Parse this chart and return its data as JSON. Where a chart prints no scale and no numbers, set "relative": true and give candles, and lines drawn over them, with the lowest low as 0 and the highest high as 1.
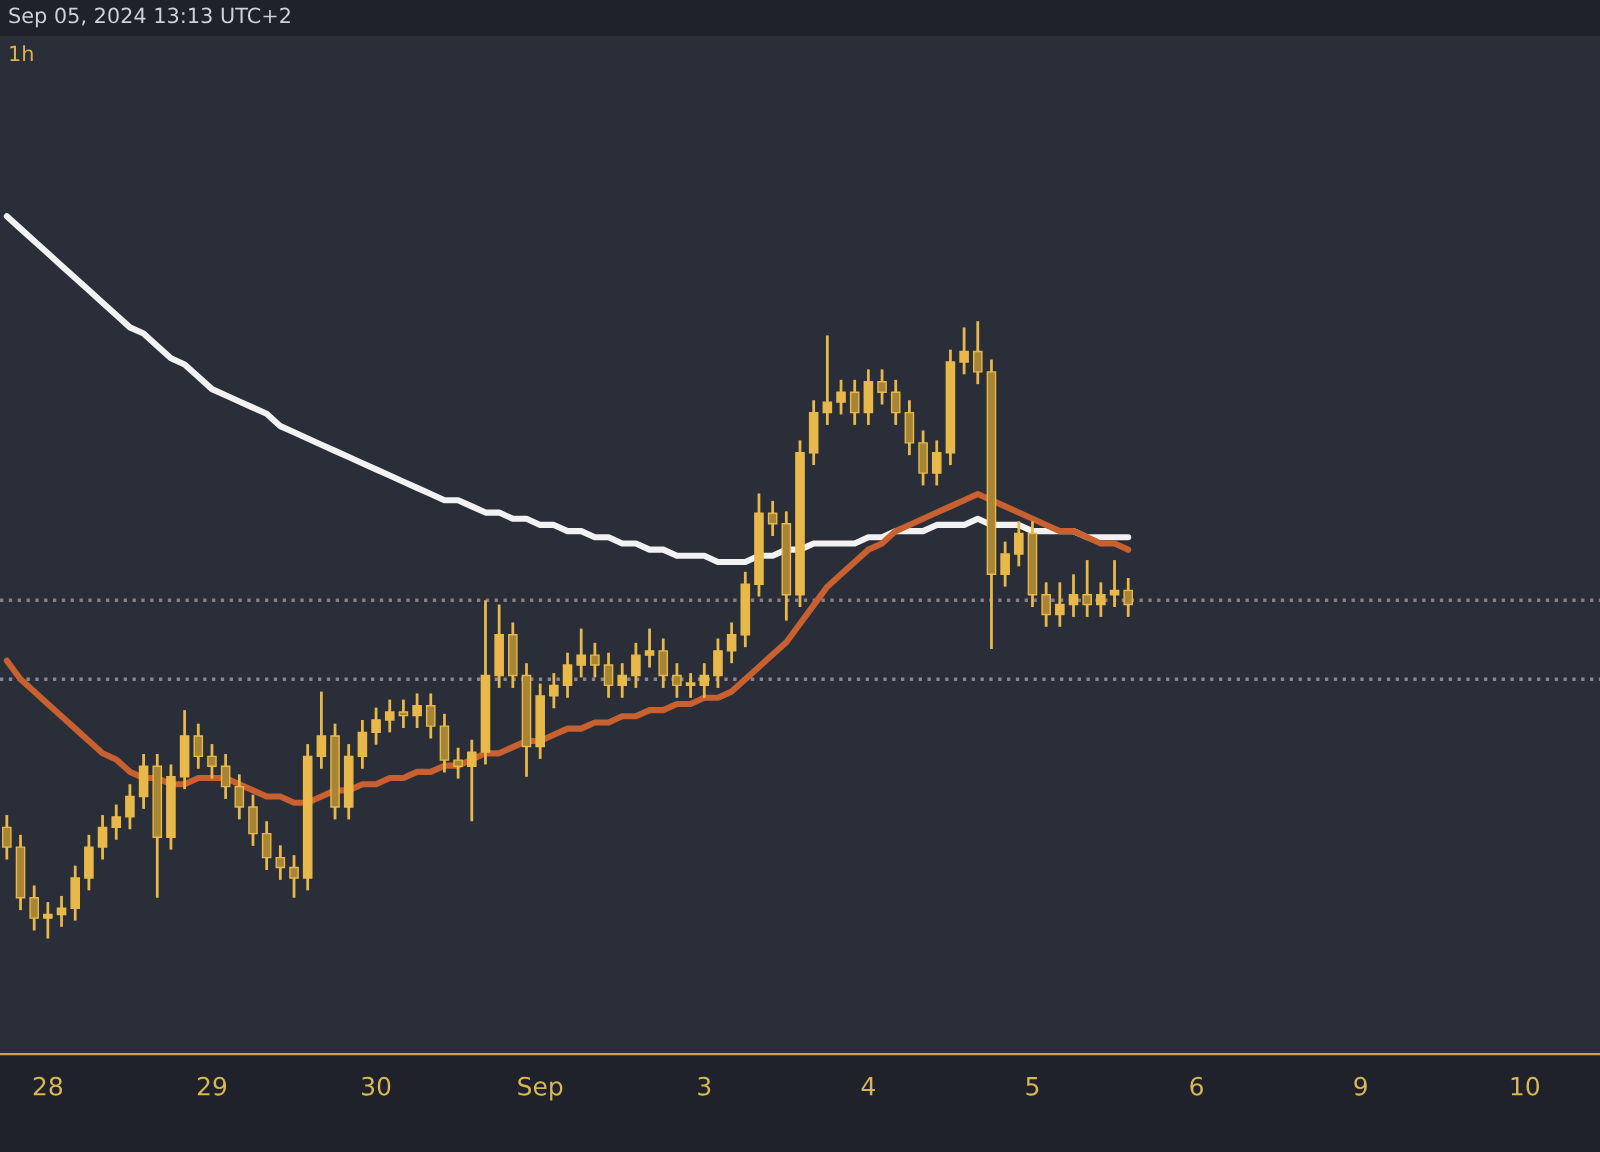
{
  "chart_data": {
    "type": "candlestick",
    "relative": true,
    "color": "#e8b94a",
    "annotations": [
      "Sep 05, 2024 13:13 UTC+2",
      "1h"
    ],
    "categories": [
      null,
      null,
      null,
      "28",
      null,
      null,
      null,
      null,
      null,
      null,
      null,
      null,
      null,
      null,
      null,
      "29",
      null,
      null,
      null,
      null,
      null,
      null,
      null,
      null,
      null,
      null,
      null,
      "30",
      null,
      null,
      null,
      null,
      null,
      null,
      null,
      null,
      null,
      null,
      null,
      "Sep",
      null,
      null,
      null,
      null,
      null,
      null,
      null,
      null,
      null,
      null,
      null,
      "3",
      null,
      null,
      null,
      null,
      null,
      null,
      null,
      null,
      null,
      null,
      null,
      "4",
      null,
      null,
      null,
      null,
      null,
      null,
      null,
      null,
      null,
      null,
      null,
      "5",
      null,
      null,
      null,
      null,
      null,
      null,
      null,
      null,
      null,
      null,
      null,
      "6",
      null,
      null,
      null,
      null,
      null,
      null,
      null,
      null,
      null,
      null,
      null,
      "9",
      null,
      null,
      null,
      null,
      null,
      null,
      null,
      null,
      null,
      null,
      null,
      "10",
      null,
      null,
      null,
      null,
      null
    ],
    "ohlc": [
      [
        0.18,
        0.2,
        0.128,
        0.148
      ],
      [
        0.148,
        0.168,
        0.046,
        0.066
      ],
      [
        0.066,
        0.086,
        0.013,
        0.033
      ],
      [
        0.033,
        0.059,
        0,
        0.039
      ],
      [
        0.039,
        0.069,
        0.019,
        0.049
      ],
      [
        0.049,
        0.118,
        0.029,
        0.098
      ],
      [
        0.098,
        0.168,
        0.078,
        0.148
      ],
      [
        0.148,
        0.2,
        0.128,
        0.18
      ],
      [
        0.18,
        0.217,
        0.16,
        0.197
      ],
      [
        0.197,
        0.25,
        0.177,
        0.23
      ],
      [
        0.23,
        0.299,
        0.21,
        0.279
      ],
      [
        0.279,
        0.299,
        0.066,
        0.164
      ],
      [
        0.164,
        0.282,
        0.144,
        0.262
      ],
      [
        0.262,
        0.37,
        0.242,
        0.328
      ],
      [
        0.328,
        0.348,
        0.275,
        0.295
      ],
      [
        0.295,
        0.315,
        0.259,
        0.279
      ],
      [
        0.279,
        0.299,
        0.226,
        0.246
      ],
      [
        0.246,
        0.266,
        0.193,
        0.213
      ],
      [
        0.213,
        0.233,
        0.15,
        0.17
      ],
      [
        0.17,
        0.19,
        0.111,
        0.131
      ],
      [
        0.131,
        0.151,
        0.095,
        0.115
      ],
      [
        0.115,
        0.135,
        0.066,
        0.098
      ],
      [
        0.098,
        0.315,
        0.078,
        0.295
      ],
      [
        0.295,
        0.4,
        0.275,
        0.328
      ],
      [
        0.328,
        0.348,
        0.193,
        0.213
      ],
      [
        0.213,
        0.315,
        0.193,
        0.295
      ],
      [
        0.295,
        0.354,
        0.275,
        0.334
      ],
      [
        0.334,
        0.374,
        0.314,
        0.354
      ],
      [
        0.354,
        0.387,
        0.334,
        0.367
      ],
      [
        0.367,
        0.387,
        0.341,
        0.361
      ],
      [
        0.361,
        0.397,
        0.341,
        0.377
      ],
      [
        0.377,
        0.397,
        0.324,
        0.344
      ],
      [
        0.344,
        0.364,
        0.269,
        0.289
      ],
      [
        0.289,
        0.309,
        0.259,
        0.279
      ],
      [
        0.279,
        0.322,
        0.19,
        0.302
      ],
      [
        0.302,
        0.548,
        0.282,
        0.426
      ],
      [
        0.426,
        0.541,
        0.406,
        0.492
      ],
      [
        0.492,
        0.512,
        0.406,
        0.426
      ],
      [
        0.426,
        0.446,
        0.262,
        0.311
      ],
      [
        0.311,
        0.413,
        0.291,
        0.393
      ],
      [
        0.393,
        0.43,
        0.373,
        0.41
      ],
      [
        0.41,
        0.463,
        0.39,
        0.443
      ],
      [
        0.443,
        0.502,
        0.423,
        0.459
      ],
      [
        0.459,
        0.479,
        0.423,
        0.443
      ],
      [
        0.443,
        0.463,
        0.39,
        0.41
      ],
      [
        0.41,
        0.446,
        0.39,
        0.426
      ],
      [
        0.426,
        0.479,
        0.406,
        0.459
      ],
      [
        0.459,
        0.502,
        0.439,
        0.466
      ],
      [
        0.466,
        0.486,
        0.406,
        0.426
      ],
      [
        0.426,
        0.446,
        0.39,
        0.41
      ],
      [
        0.41,
        0.43,
        0.39,
        0.41
      ],
      [
        0.41,
        0.446,
        0.39,
        0.426
      ],
      [
        0.426,
        0.486,
        0.406,
        0.466
      ],
      [
        0.466,
        0.512,
        0.446,
        0.492
      ],
      [
        0.492,
        0.594,
        0.472,
        0.574
      ],
      [
        0.574,
        0.721,
        0.554,
        0.689
      ],
      [
        0.689,
        0.709,
        0.652,
        0.672
      ],
      [
        0.672,
        0.692,
        0.515,
        0.557
      ],
      [
        0.557,
        0.807,
        0.537,
        0.787
      ],
      [
        0.787,
        0.872,
        0.767,
        0.852
      ],
      [
        0.852,
        0.977,
        0.832,
        0.869
      ],
      [
        0.869,
        0.905,
        0.849,
        0.885
      ],
      [
        0.885,
        0.905,
        0.832,
        0.852
      ],
      [
        0.852,
        0.922,
        0.832,
        0.902
      ],
      [
        0.902,
        0.922,
        0.865,
        0.885
      ],
      [
        0.885,
        0.905,
        0.832,
        0.852
      ],
      [
        0.852,
        0.872,
        0.783,
        0.803
      ],
      [
        0.803,
        0.823,
        0.734,
        0.754
      ],
      [
        0.754,
        0.807,
        0.734,
        0.787
      ],
      [
        0.787,
        0.954,
        0.767,
        0.934
      ],
      [
        0.934,
        0.99,
        0.914,
        0.951
      ],
      [
        0.951,
        1.0,
        0.898,
        0.918
      ],
      [
        0.918,
        0.938,
        0.469,
        0.59
      ],
      [
        0.59,
        0.643,
        0.57,
        0.623
      ],
      [
        0.623,
        0.676,
        0.603,
        0.656
      ],
      [
        0.656,
        0.676,
        0.537,
        0.557
      ],
      [
        0.557,
        0.577,
        0.505,
        0.525
      ],
      [
        0.525,
        0.577,
        0.505,
        0.541
      ],
      [
        0.541,
        0.59,
        0.521,
        0.557
      ],
      [
        0.557,
        0.613,
        0.521,
        0.541
      ],
      [
        0.541,
        0.577,
        0.521,
        0.557
      ],
      [
        0.557,
        0.613,
        0.537,
        0.564
      ],
      [
        0.564,
        0.584,
        0.521,
        0.541
      ],
      null,
      null,
      null,
      null,
      null,
      null,
      null,
      null,
      null,
      null,
      null,
      null,
      null,
      null,
      null,
      null,
      null,
      null,
      null,
      null,
      null,
      null,
      null,
      null,
      null,
      null,
      null,
      null,
      null,
      null,
      null,
      null,
      null,
      null
    ],
    "series": [
      {
        "type": "line",
        "color": "#f2f2f2",
        "values": [
          1.17,
          1.15,
          1.13,
          1.11,
          1.09,
          1.07,
          1.05,
          1.03,
          1.01,
          0.99,
          0.98,
          0.96,
          0.94,
          0.93,
          0.91,
          0.89,
          0.88,
          0.87,
          0.86,
          0.85,
          0.83,
          0.82,
          0.81,
          0.8,
          0.79,
          0.78,
          0.77,
          0.76,
          0.75,
          0.74,
          0.73,
          0.72,
          0.71,
          0.71,
          0.7,
          0.69,
          0.69,
          0.68,
          0.68,
          0.67,
          0.67,
          0.66,
          0.66,
          0.65,
          0.65,
          0.64,
          0.64,
          0.63,
          0.63,
          0.62,
          0.62,
          0.62,
          0.61,
          0.61,
          0.61,
          0.62,
          0.62,
          0.63,
          0.63,
          0.64,
          0.64,
          0.64,
          0.64,
          0.65,
          0.65,
          0.66,
          0.66,
          0.66,
          0.67,
          0.67,
          0.67,
          0.68,
          0.67,
          0.67,
          0.67,
          0.66,
          0.66,
          0.66,
          0.66,
          0.65,
          0.65,
          0.65,
          0.65,
          null,
          null,
          null,
          null,
          null,
          null,
          null,
          null,
          null,
          null,
          null,
          null,
          null,
          null,
          null,
          null,
          null,
          null,
          null,
          null,
          null,
          null,
          null,
          null,
          null,
          null,
          null,
          null,
          null,
          null,
          null,
          null,
          null,
          null
        ]
      },
      {
        "type": "line",
        "color": "#c8602f",
        "values": [
          0.45,
          0.42,
          0.4,
          0.38,
          0.36,
          0.34,
          0.32,
          0.3,
          0.29,
          0.27,
          0.26,
          0.26,
          0.25,
          0.25,
          0.26,
          0.26,
          0.26,
          0.25,
          0.24,
          0.23,
          0.23,
          0.22,
          0.22,
          0.23,
          0.24,
          0.24,
          0.25,
          0.25,
          0.26,
          0.26,
          0.27,
          0.27,
          0.28,
          0.28,
          0.29,
          0.3,
          0.3,
          0.31,
          0.32,
          0.32,
          0.33,
          0.34,
          0.34,
          0.35,
          0.35,
          0.36,
          0.36,
          0.37,
          0.37,
          0.38,
          0.38,
          0.39,
          0.39,
          0.4,
          0.42,
          0.44,
          0.46,
          0.48,
          0.51,
          0.54,
          0.57,
          0.59,
          0.61,
          0.63,
          0.64,
          0.66,
          0.67,
          0.68,
          0.69,
          0.7,
          0.71,
          0.72,
          0.71,
          0.7,
          0.69,
          0.68,
          0.67,
          0.66,
          0.66,
          0.65,
          0.64,
          0.64,
          0.63,
          null,
          null,
          null,
          null,
          null,
          null,
          null,
          null,
          null,
          null,
          null,
          null,
          null,
          null,
          null,
          null,
          null,
          null,
          null,
          null,
          null,
          null,
          null,
          null,
          null,
          null,
          null,
          null,
          null,
          null,
          null,
          null,
          null,
          null
        ]
      }
    ],
    "ref_lines": [
      {
        "axis": "y",
        "value": 0.548,
        "color": "#8c7d84"
      },
      {
        "axis": "y",
        "value": 0.42,
        "color": "#8a8590"
      }
    ]
  }
}
